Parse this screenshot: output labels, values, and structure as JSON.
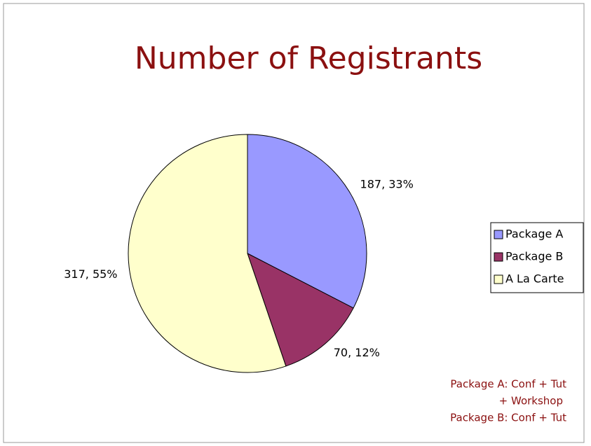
{
  "chart_data": {
    "type": "pie",
    "title": "Number of Registrants",
    "categories": [
      "Package A",
      "Package B",
      "A La Carte"
    ],
    "values": [
      187,
      70,
      317
    ],
    "value_labels": [
      "187, 33%",
      "70, 12%",
      "317, 55%"
    ],
    "colors": [
      "#9999ff",
      "#993366",
      "#ffffcc"
    ],
    "legend": "right",
    "annotations": [
      "Package A: Conf + Tut",
      "+ Workshop",
      "Package B: Conf + Tut"
    ]
  }
}
